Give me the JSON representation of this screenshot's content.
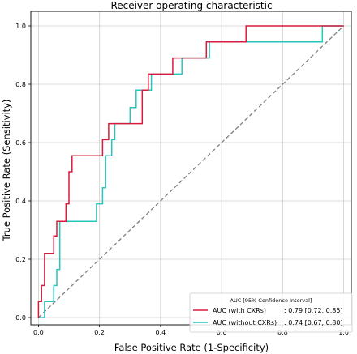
{
  "chart_data": {
    "type": "line",
    "title": "Receiver operating characteristic",
    "xlabel": "False Positive Rate (1-Specificity)",
    "ylabel": "True Positive Rate (Sensitivity)",
    "xlim": [
      -0.025,
      1.025
    ],
    "ylim": [
      -0.025,
      1.05
    ],
    "xticks": [
      "0.0",
      "0.2",
      "0.4",
      "0.6",
      "0.8",
      "1.0"
    ],
    "yticks": [
      "0.0",
      "0.2",
      "0.4",
      "0.6",
      "0.8",
      "1.0"
    ],
    "grid": true,
    "legend": {
      "position": "lower-right",
      "title": "AUC [95% Confidence Interval]",
      "entries": [
        {
          "label": "AUC (with CXRs)",
          "value": ": 0.79 [0.72, 0.85]",
          "color": "#d81b3c"
        },
        {
          "label": "AUC (without CXRs)",
          "value": ": 0.74 [0.67, 0.80]",
          "color": "#26c6bd"
        }
      ]
    },
    "diagonal": {
      "color": "#808080",
      "style": "dashed"
    },
    "series": [
      {
        "name": "AUC (with CXRs)",
        "color": "#d81b3c",
        "x": [
          0.0,
          0.0,
          0.01,
          0.01,
          0.02,
          0.02,
          0.04,
          0.05,
          0.05,
          0.06,
          0.06,
          0.09,
          0.09,
          0.1,
          0.1,
          0.11,
          0.11,
          0.21,
          0.21,
          0.23,
          0.23,
          0.28,
          0.28,
          0.34,
          0.34,
          0.36,
          0.36,
          0.44,
          0.44,
          0.55,
          0.55,
          0.68,
          0.68,
          0.91,
          0.91,
          1.0
        ],
        "y": [
          0.0,
          0.055,
          0.055,
          0.11,
          0.11,
          0.22,
          0.22,
          0.22,
          0.28,
          0.28,
          0.33,
          0.33,
          0.39,
          0.39,
          0.5,
          0.5,
          0.555,
          0.555,
          0.61,
          0.61,
          0.665,
          0.665,
          0.665,
          0.665,
          0.78,
          0.78,
          0.835,
          0.835,
          0.89,
          0.89,
          0.945,
          0.945,
          1.0,
          1.0,
          1.0,
          1.0
        ]
      },
      {
        "name": "AUC (without CXRs)",
        "color": "#26c6bd",
        "x": [
          0.0,
          0.0,
          0.02,
          0.02,
          0.05,
          0.05,
          0.06,
          0.06,
          0.07,
          0.07,
          0.19,
          0.19,
          0.21,
          0.21,
          0.22,
          0.22,
          0.24,
          0.24,
          0.25,
          0.25,
          0.3,
          0.3,
          0.32,
          0.32,
          0.37,
          0.37,
          0.47,
          0.47,
          0.56,
          0.56,
          0.93,
          0.93,
          1.0
        ],
        "y": [
          0.0,
          0.0,
          0.0,
          0.055,
          0.055,
          0.11,
          0.11,
          0.165,
          0.165,
          0.33,
          0.33,
          0.39,
          0.39,
          0.445,
          0.445,
          0.555,
          0.555,
          0.61,
          0.61,
          0.665,
          0.665,
          0.72,
          0.72,
          0.78,
          0.78,
          0.835,
          0.835,
          0.89,
          0.89,
          0.945,
          0.945,
          1.0,
          1.0
        ]
      }
    ]
  }
}
